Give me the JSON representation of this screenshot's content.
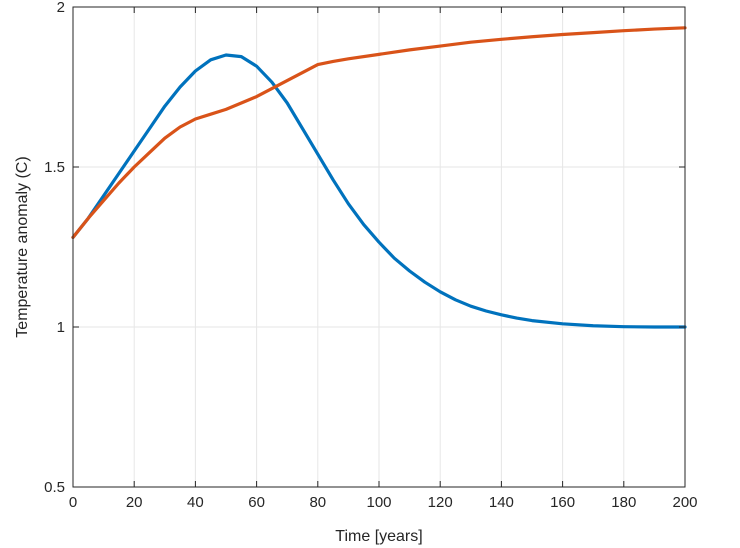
{
  "chart_data": {
    "type": "line",
    "title": "",
    "xlabel": "Time [years]",
    "ylabel": "Temperature anomaly (C)",
    "xlim": [
      0,
      200
    ],
    "ylim": [
      0.5,
      2
    ],
    "xticks": [
      0,
      20,
      40,
      60,
      80,
      100,
      120,
      140,
      160,
      180,
      200
    ],
    "yticks": [
      0.5,
      1,
      1.5,
      2
    ],
    "xtick_labels": [
      "0",
      "20",
      "40",
      "60",
      "80",
      "100",
      "120",
      "140",
      "160",
      "180",
      "200"
    ],
    "ytick_labels": [
      "0.5",
      "1",
      "1.5",
      "2"
    ],
    "grid": true,
    "series": [
      {
        "color": "#0072BD",
        "x": [
          0,
          5,
          10,
          15,
          20,
          25,
          30,
          35,
          40,
          45,
          50,
          55,
          60,
          65,
          70,
          75,
          80,
          85,
          90,
          95,
          100,
          105,
          110,
          115,
          120,
          125,
          130,
          135,
          140,
          145,
          150,
          160,
          170,
          180,
          190,
          200
        ],
        "y": [
          1.28,
          1.34,
          1.41,
          1.48,
          1.55,
          1.62,
          1.69,
          1.75,
          1.8,
          1.835,
          1.85,
          1.845,
          1.815,
          1.765,
          1.7,
          1.62,
          1.54,
          1.46,
          1.385,
          1.32,
          1.265,
          1.215,
          1.175,
          1.14,
          1.11,
          1.085,
          1.065,
          1.05,
          1.038,
          1.028,
          1.02,
          1.01,
          1.004,
          1.001,
          1.0,
          1.0
        ]
      },
      {
        "color": "#D95319",
        "x": [
          0,
          5,
          10,
          15,
          20,
          25,
          30,
          35,
          40,
          45,
          50,
          55,
          60,
          65,
          70,
          75,
          80,
          85,
          90,
          100,
          110,
          120,
          130,
          140,
          150,
          160,
          170,
          180,
          190,
          200
        ],
        "y": [
          1.28,
          1.34,
          1.395,
          1.45,
          1.5,
          1.545,
          1.59,
          1.625,
          1.65,
          1.665,
          1.68,
          1.7,
          1.72,
          1.745,
          1.77,
          1.795,
          1.82,
          1.83,
          1.838,
          1.852,
          1.866,
          1.878,
          1.89,
          1.899,
          1.907,
          1.914,
          1.92,
          1.926,
          1.931,
          1.935
        ]
      }
    ]
  }
}
